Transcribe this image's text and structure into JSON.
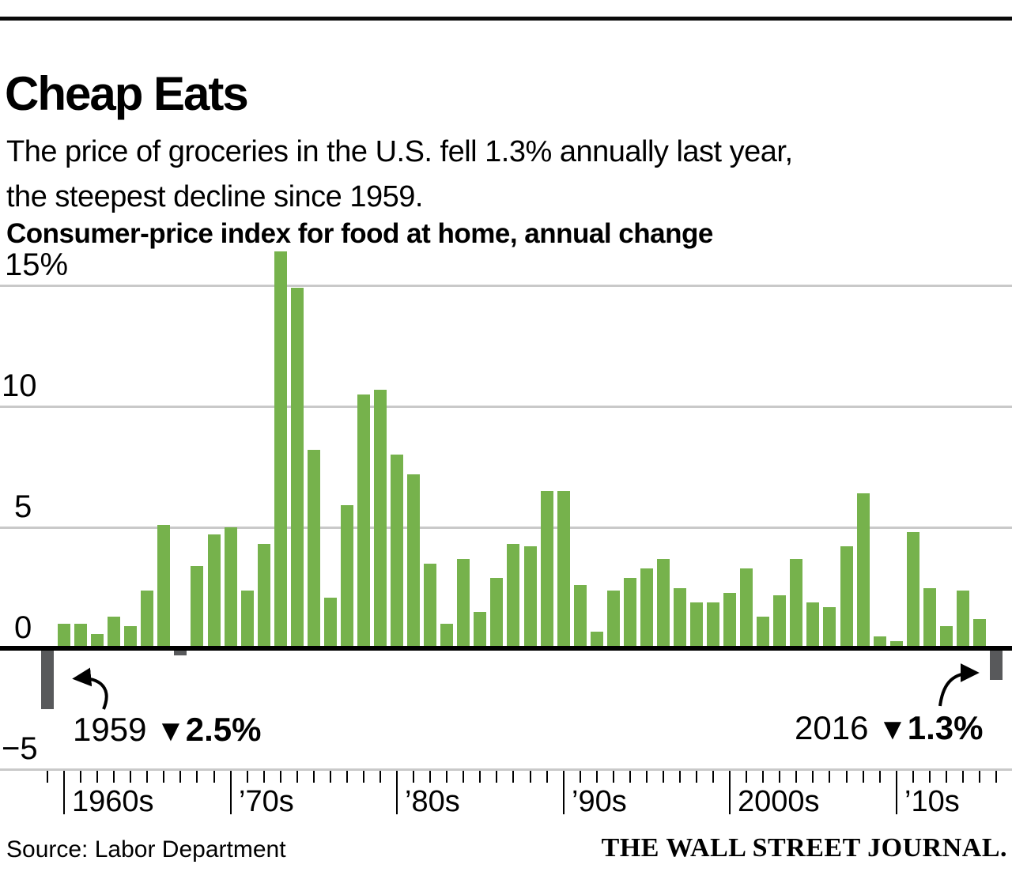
{
  "header": {
    "title": "Cheap Eats",
    "subtitle_line1": "The price of groceries in the U.S. fell 1.3% annually last year,",
    "subtitle_line2": "the steepest decline since 1959.",
    "kicker": "Consumer-price index for food at home, annual change"
  },
  "chart_data": {
    "type": "bar",
    "title": "Consumer-price index for food at home, annual change",
    "unit": "percent",
    "ylim": [
      -5,
      17
    ],
    "grid": true,
    "x": [
      1959,
      1960,
      1961,
      1962,
      1963,
      1964,
      1965,
      1966,
      1967,
      1968,
      1969,
      1970,
      1971,
      1972,
      1973,
      1974,
      1975,
      1976,
      1977,
      1978,
      1979,
      1980,
      1981,
      1982,
      1983,
      1984,
      1985,
      1986,
      1987,
      1988,
      1989,
      1990,
      1991,
      1992,
      1993,
      1994,
      1995,
      1996,
      1997,
      1998,
      1999,
      2000,
      2001,
      2002,
      2003,
      2004,
      2005,
      2006,
      2007,
      2008,
      2009,
      2010,
      2011,
      2012,
      2013,
      2014,
      2015,
      2016
    ],
    "values": [
      -2.5,
      1.0,
      1.0,
      0.6,
      1.3,
      0.9,
      2.4,
      5.1,
      -0.3,
      3.4,
      4.7,
      5.0,
      2.4,
      4.3,
      16.4,
      14.9,
      8.2,
      2.1,
      5.9,
      10.5,
      10.7,
      8.0,
      7.2,
      3.5,
      1.0,
      3.7,
      1.5,
      2.9,
      4.3,
      4.2,
      6.5,
      6.5,
      2.6,
      0.7,
      2.4,
      2.9,
      3.3,
      3.7,
      2.5,
      1.9,
      1.9,
      2.3,
      3.3,
      1.3,
      2.2,
      3.7,
      1.9,
      1.7,
      4.2,
      6.4,
      0.5,
      0.3,
      4.8,
      2.5,
      0.9,
      2.4,
      1.2,
      -1.3
    ],
    "yticks": [
      {
        "label": "15%",
        "value": 15
      },
      {
        "label": "10",
        "value": 10
      },
      {
        "label": "5",
        "value": 5
      },
      {
        "label": "0",
        "value": 0
      },
      {
        "label": "−5",
        "value": -5
      }
    ],
    "xticks": [
      {
        "year": 1960,
        "label": "1960s"
      },
      {
        "year": 1970,
        "label": "’70s"
      },
      {
        "year": 1980,
        "label": "’80s"
      },
      {
        "year": 1990,
        "label": "’90s"
      },
      {
        "year": 2000,
        "label": "2000s"
      },
      {
        "year": 2010,
        "label": "’10s"
      }
    ],
    "colors": {
      "positive": "#76b24c",
      "negative": "#58595b"
    },
    "legend_position": "none"
  },
  "annotations": {
    "left": {
      "year": "1959",
      "marker": "▼",
      "value": "2.5%"
    },
    "right": {
      "year": "2016",
      "marker": "▼",
      "value": "1.3%"
    }
  },
  "footer": {
    "source": "Source: Labor Department",
    "brand": "THE WALL STREET JOURNAL."
  }
}
